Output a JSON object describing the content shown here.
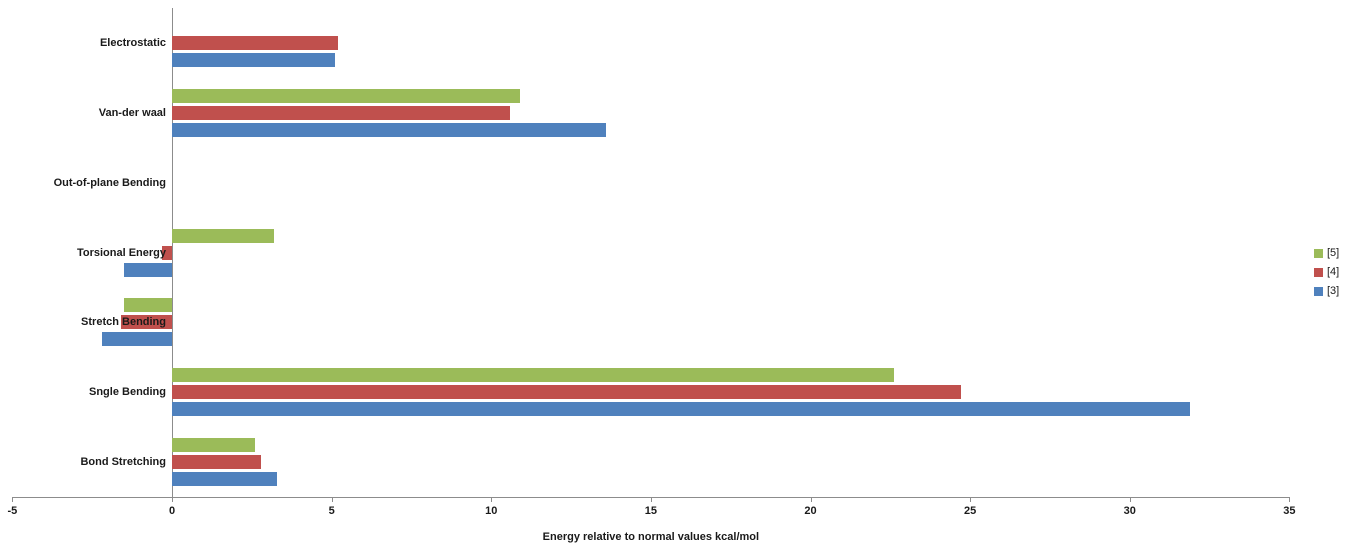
{
  "chart_data": {
    "type": "bar",
    "orientation": "horizontal",
    "title": "",
    "xlabel": "Energy relative to normal values kcal/mol",
    "ylabel": "",
    "xlim": [
      -5,
      35
    ],
    "xticks": [
      -5,
      0,
      5,
      10,
      15,
      20,
      25,
      30,
      35
    ],
    "grid": false,
    "legend_position": "right",
    "categories": [
      "Electrostatic",
      "Van-der waal",
      "Out-of-plane Bending",
      "Torsional Energy",
      "Stretch Bending",
      "Sngle Bending",
      "Bond Stretching"
    ],
    "series": [
      {
        "name": "[5]",
        "color": "#9BBB59",
        "values": [
          0,
          10.9,
          0,
          3.2,
          -1.5,
          22.6,
          2.6
        ]
      },
      {
        "name": "[4]",
        "color": "#C0504D",
        "values": [
          5.2,
          10.6,
          0,
          -0.3,
          -1.6,
          24.7,
          2.8
        ]
      },
      {
        "name": "[3]",
        "color": "#4F81BD",
        "values": [
          5.1,
          13.6,
          0,
          -1.5,
          -2.2,
          31.9,
          3.3
        ]
      }
    ]
  }
}
